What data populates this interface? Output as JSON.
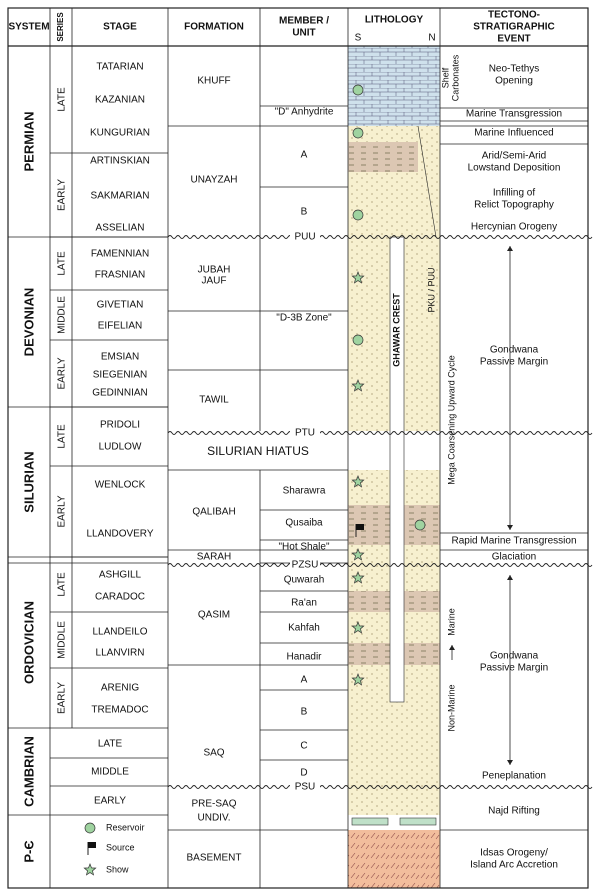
{
  "headers": [
    [
      "SYSTEM"
    ],
    [
      "SERIES"
    ],
    [
      "STAGE"
    ],
    [
      "FORMATION"
    ],
    [
      "MEMBER /",
      "UNIT"
    ],
    [
      "LITHOLOGY"
    ],
    [
      "TECTONO-",
      "STRATIGRAPHIC",
      "EVENT"
    ]
  ],
  "lithology_sides": [
    "S",
    "N"
  ],
  "systems": [
    "PERMIAN",
    "DEVONIAN",
    "SILURIAN",
    "ORDOVICIAN",
    "CAMBRIAN",
    "P-Є"
  ],
  "series": [
    "LATE",
    "EARLY",
    "LATE",
    "MIDDLE",
    "EARLY",
    "LATE",
    "EARLY",
    "LATE",
    "MIDDLE",
    "EARLY"
  ],
  "stages": [
    "TATARIAN",
    "KAZANIAN",
    "KUNGURIAN",
    "ARTINSKIAN",
    "SAKMARIAN",
    "ASSELIAN",
    "FAMENNIAN",
    "FRASNIAN",
    "GIVETIAN",
    "EIFELIAN",
    "EMSIAN",
    "SIEGENIAN",
    "GEDINNIAN",
    "PRIDOLI",
    "LUDLOW",
    "WENLOCK",
    "LLANDOVERY",
    "ASHGILL",
    "CARADOC",
    "LLANDEILO",
    "LLANVIRN",
    "ARENIG",
    "TREMADOC",
    "LATE",
    "MIDDLE",
    "EARLY"
  ],
  "formations": [
    [
      "KHUFF"
    ],
    [
      "UNAYZAH"
    ],
    [
      "JUBAH"
    ],
    [
      "JAUF"
    ],
    [
      "TAWIL"
    ],
    [
      "SILURIAN HIATUS"
    ],
    [
      "QALIBAH"
    ],
    [
      "SARAH"
    ],
    [
      "QASIM"
    ],
    [
      "SAQ"
    ],
    [
      "PRE-SAQ",
      "UNDIV."
    ],
    [
      "BASEMENT"
    ]
  ],
  "members": [
    "\"D\" Anhydrite",
    "A",
    "B",
    "\"D-3B  Zone\"",
    "Sharawra",
    "Qusaiba",
    "\"Hot Shale\"",
    "Quwarah",
    "Ra'an",
    "Kahfah",
    "Hanadir",
    "A",
    "B",
    "C",
    "D"
  ],
  "unconformities": [
    "PUU",
    "PTU",
    "PZSU",
    "PSU"
  ],
  "events": [
    [
      "Neo-Tethys",
      "Opening"
    ],
    [
      "Marine Transgression"
    ],
    [
      "Marine Influenced"
    ],
    [
      "Arid/Semi-Arid",
      "Lowstand Deposition"
    ],
    [
      "Infilling of",
      "Relict Topography"
    ],
    [
      "Hercynian Orogeny"
    ],
    [
      "Gondwana",
      "Passive Margin"
    ],
    [
      "Rapid Marine Transgression"
    ],
    [
      "Glaciation"
    ],
    [
      "Gondwana",
      "Passive Margin"
    ],
    [
      "Peneplanation"
    ],
    [
      "Najd Rifting"
    ],
    [
      "Idsas Orogeny/",
      "Island Arc Accretion"
    ]
  ],
  "side_labels": {
    "shelf": [
      "Shelf",
      "Carbonates"
    ],
    "cycle": "Mega Coarsening Upward Cycle",
    "marine": "Marine",
    "non_marine": "Non-Marine",
    "crest": "GHAWAR CREST",
    "pku": "PKU / PUU"
  },
  "legend": [
    "Reservoir",
    "Source",
    "Show"
  ]
}
